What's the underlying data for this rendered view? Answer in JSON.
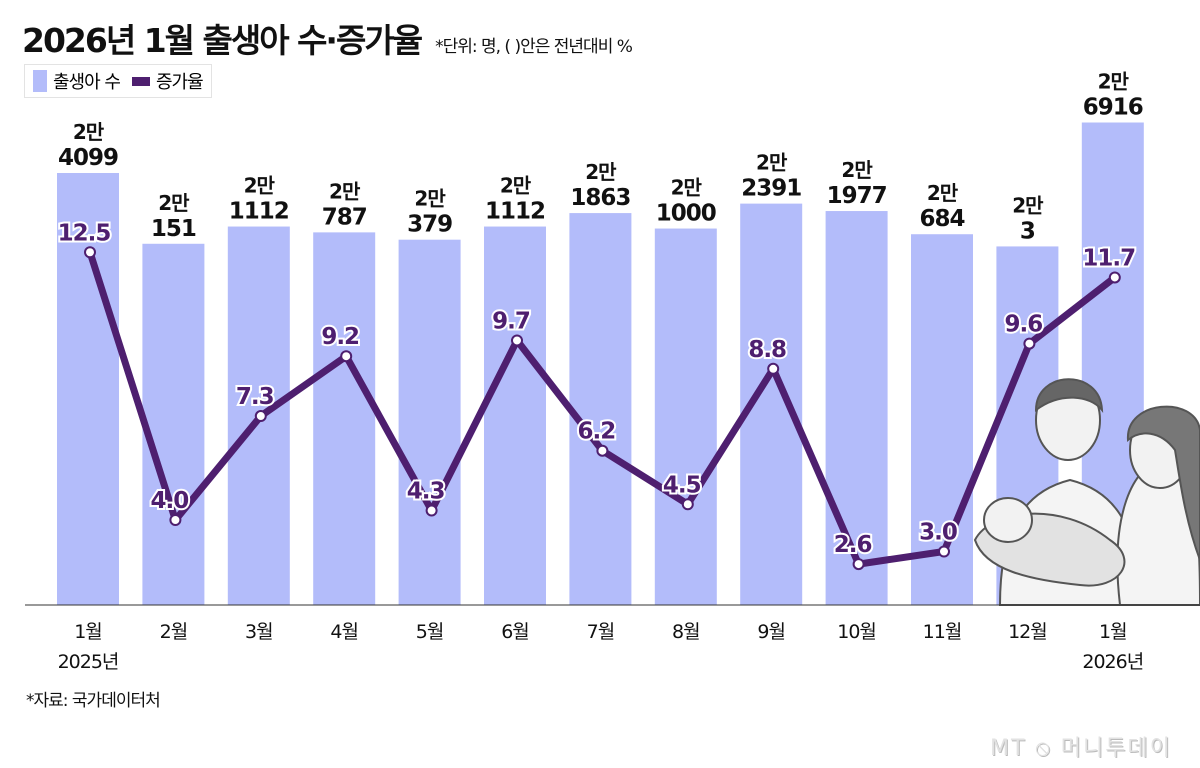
{
  "chart_data": {
    "type": "bar+line",
    "title": "2026년 1월 출생아 수·증가율",
    "subtitle": "*단위: 명, ( )안은 전년대비 %",
    "categories": [
      "1월",
      "2월",
      "3월",
      "4월",
      "5월",
      "6월",
      "7월",
      "8월",
      "9월",
      "10월",
      "11월",
      "12월",
      "1월"
    ],
    "year_labels": {
      "0": "2025년",
      "12": "2026년"
    },
    "series": [
      {
        "name": "출생아 수",
        "type": "bar",
        "color": "#b3bcfa",
        "values": [
          24099,
          20151,
          21112,
          20787,
          20379,
          21112,
          21863,
          21000,
          22391,
          21977,
          20684,
          20003,
          26916
        ],
        "labels_top": [
          "2만",
          "2만",
          "2만",
          "2만",
          "2만",
          "2만",
          "2만",
          "2만",
          "2만",
          "2만",
          "2만",
          "2만",
          "2만"
        ],
        "labels_bottom": [
          "4099",
          "151",
          "1112",
          "787",
          "379",
          "1112",
          "1863",
          "1000",
          "2391",
          "1977",
          "684",
          "3",
          "6916"
        ]
      },
      {
        "name": "증가율",
        "type": "line",
        "color": "#4e1f6f",
        "values": [
          12.5,
          4.0,
          7.3,
          9.2,
          4.3,
          9.7,
          6.2,
          4.5,
          8.8,
          2.6,
          3.0,
          9.6,
          11.7
        ],
        "labels": [
          "12.5",
          "4.0",
          "7.3",
          "9.2",
          "4.3",
          "9.7",
          "6.2",
          "4.5",
          "8.8",
          "2.6",
          "3.0",
          "9.6",
          "11.7"
        ]
      }
    ],
    "legend": "top-left",
    "grid": false
  },
  "source": "*자료: 국가데이터처",
  "logo": "MT ⦸ 머니투데이"
}
